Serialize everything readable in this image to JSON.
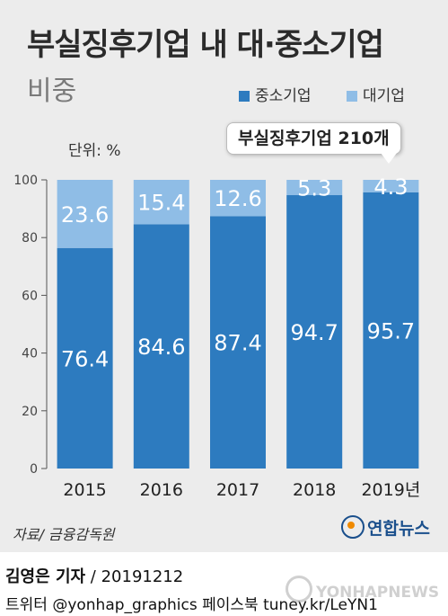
{
  "header": {
    "title": "부실징후기업 내 대·중소기업",
    "subtitle": "비중"
  },
  "legend": {
    "sme_label": "중소기업",
    "large_label": "대기업"
  },
  "unit_label": "단위: %",
  "callout": "부실징후기업 210개",
  "colors": {
    "sme": "#2d7bbf",
    "large": "#8fbde6",
    "background": "#ececec"
  },
  "chart_data": {
    "type": "bar",
    "stacked": true,
    "categories": [
      "2015",
      "2016",
      "2017",
      "2018",
      "2019년"
    ],
    "series": [
      {
        "name": "중소기업",
        "values": [
          76.4,
          84.6,
          87.4,
          94.7,
          95.7
        ]
      },
      {
        "name": "대기업",
        "values": [
          23.6,
          15.4,
          12.6,
          5.3,
          4.3
        ]
      }
    ],
    "ylim": [
      0,
      100
    ],
    "yticks": [
      0,
      20,
      40,
      60,
      80,
      100
    ],
    "grid": false
  },
  "footer": {
    "source": "자료/ 금융감독원",
    "logo_text": "연합뉴스",
    "reporter": "김영은 기자",
    "date": "20191212",
    "sns": "트위터 @yonhap_graphics  페이스북 tuney.kr/LeYN1",
    "watermark": "YONHAPNEWS"
  }
}
